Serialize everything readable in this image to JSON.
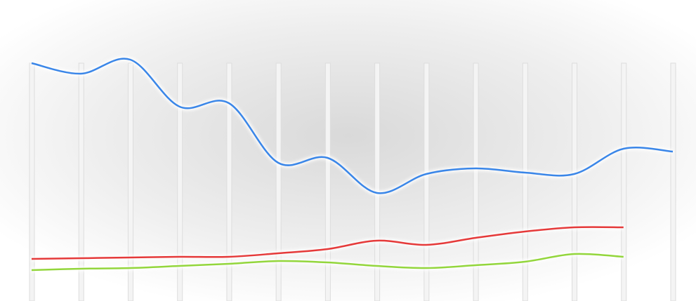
{
  "chart_data": {
    "type": "line",
    "categories": [
      null,
      null,
      null,
      null,
      null,
      null,
      null,
      null,
      null,
      null,
      null,
      null,
      null,
      null
    ],
    "series": [
      {
        "color": "#3a86e8",
        "values": [
          339,
          324,
          344,
          277,
          282,
          197,
          204,
          154,
          181,
          189,
          183,
          181,
          217,
          213
        ]
      },
      {
        "color": "#e53a3a",
        "values": [
          60,
          61,
          62,
          63,
          63,
          68,
          74,
          86,
          80,
          90,
          99,
          105,
          105,
          null
        ]
      },
      {
        "color": "#93d63c",
        "values": [
          44,
          46,
          47,
          50,
          53,
          57,
          55,
          50,
          47,
          51,
          56,
          67,
          63,
          null
        ]
      }
    ],
    "ylim": [
      0,
      429
    ],
    "smooth": true
  }
}
